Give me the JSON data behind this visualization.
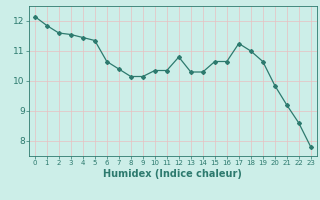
{
  "x": [
    0,
    1,
    2,
    3,
    4,
    5,
    6,
    7,
    8,
    9,
    10,
    11,
    12,
    13,
    14,
    15,
    16,
    17,
    18,
    19,
    20,
    21,
    22,
    23
  ],
  "y": [
    12.15,
    11.85,
    11.6,
    11.55,
    11.45,
    11.35,
    10.65,
    10.4,
    10.15,
    10.15,
    10.35,
    10.35,
    10.8,
    10.3,
    10.3,
    10.65,
    10.65,
    11.25,
    11.0,
    10.65,
    9.85,
    9.2,
    8.6,
    7.8
  ],
  "xlabel": "Humidex (Indice chaleur)",
  "bg_color": "#cceee8",
  "line_color": "#2d7a6e",
  "grid_h_color": "#e8c0c0",
  "grid_v_color": "#e8c0c0",
  "ylim": [
    7.5,
    12.5
  ],
  "xlim": [
    -0.5,
    23.5
  ],
  "yticks": [
    8,
    9,
    10,
    11,
    12
  ],
  "xticks": [
    0,
    1,
    2,
    3,
    4,
    5,
    6,
    7,
    8,
    9,
    10,
    11,
    12,
    13,
    14,
    15,
    16,
    17,
    18,
    19,
    20,
    21,
    22,
    23
  ],
  "xlabel_fontsize": 7,
  "xtick_fontsize": 5,
  "ytick_fontsize": 6.5
}
